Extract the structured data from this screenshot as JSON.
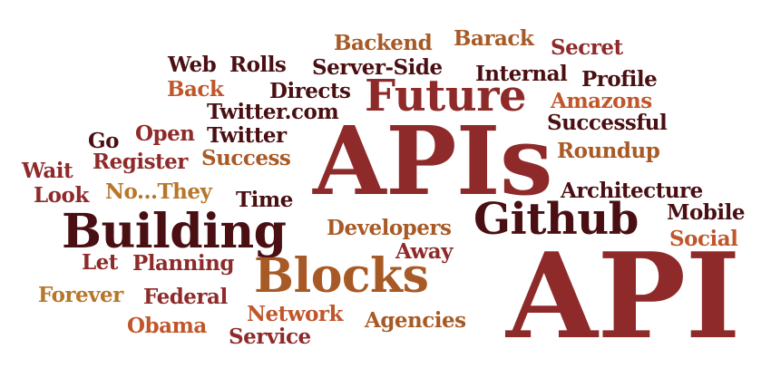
{
  "colors": {
    "dark": "#4a0f12",
    "red": "#8f2a2a",
    "orange": "#c0562b",
    "gold": "#b8762a",
    "brown": "#a85a26"
  },
  "words": [
    {
      "text": "API",
      "color": "red",
      "name": "api"
    },
    {
      "text": "APIs",
      "color": "red",
      "name": "apis"
    },
    {
      "text": "Building",
      "color": "dark",
      "name": "building"
    },
    {
      "text": "Blocks",
      "color": "brown",
      "name": "blocks"
    },
    {
      "text": "Github",
      "color": "dark",
      "name": "github"
    },
    {
      "text": "Future",
      "color": "red",
      "name": "future"
    },
    {
      "text": "Backend",
      "color": "brown",
      "name": "backend"
    },
    {
      "text": "Barack",
      "color": "brown",
      "name": "barack"
    },
    {
      "text": "Secret",
      "color": "red",
      "name": "secret"
    },
    {
      "text": "Web",
      "color": "dark",
      "name": "web"
    },
    {
      "text": "Rolls",
      "color": "dark",
      "name": "rolls"
    },
    {
      "text": "Server-Side",
      "color": "dark",
      "name": "server-side"
    },
    {
      "text": "Internal",
      "color": "dark",
      "name": "internal"
    },
    {
      "text": "Profile",
      "color": "dark",
      "name": "profile"
    },
    {
      "text": "Back",
      "color": "orange",
      "name": "back"
    },
    {
      "text": "Directs",
      "color": "dark",
      "name": "directs"
    },
    {
      "text": "Amazons",
      "color": "orange",
      "name": "amazons"
    },
    {
      "text": "Twitter.com",
      "color": "dark",
      "name": "twitter-com"
    },
    {
      "text": "Successful",
      "color": "dark",
      "name": "successful"
    },
    {
      "text": "Open",
      "color": "red",
      "name": "open"
    },
    {
      "text": "Go",
      "color": "dark",
      "name": "go"
    },
    {
      "text": "Twitter",
      "color": "dark",
      "name": "twitter"
    },
    {
      "text": "Roundup",
      "color": "brown",
      "name": "roundup"
    },
    {
      "text": "Register",
      "color": "red",
      "name": "register"
    },
    {
      "text": "Success",
      "color": "brown",
      "name": "success"
    },
    {
      "text": "Wait",
      "color": "red",
      "name": "wait"
    },
    {
      "text": "Architecture",
      "color": "dark",
      "name": "architecture"
    },
    {
      "text": "Look",
      "color": "red",
      "name": "look"
    },
    {
      "text": "No...They",
      "color": "gold",
      "name": "no-they"
    },
    {
      "text": "Time",
      "color": "dark",
      "name": "time"
    },
    {
      "text": "Mobile",
      "color": "dark",
      "name": "mobile"
    },
    {
      "text": "Developers",
      "color": "brown",
      "name": "developers"
    },
    {
      "text": "Social",
      "color": "orange",
      "name": "social"
    },
    {
      "text": "Away",
      "color": "red",
      "name": "away"
    },
    {
      "text": "Let",
      "color": "red",
      "name": "let"
    },
    {
      "text": "Planning",
      "color": "red",
      "name": "planning"
    },
    {
      "text": "Forever",
      "color": "gold",
      "name": "forever"
    },
    {
      "text": "Federal",
      "color": "red",
      "name": "federal"
    },
    {
      "text": "Network",
      "color": "orange",
      "name": "network"
    },
    {
      "text": "Agencies",
      "color": "brown",
      "name": "agencies"
    },
    {
      "text": "Obama",
      "color": "orange",
      "name": "obama"
    },
    {
      "text": "Service",
      "color": "red",
      "name": "service"
    }
  ]
}
